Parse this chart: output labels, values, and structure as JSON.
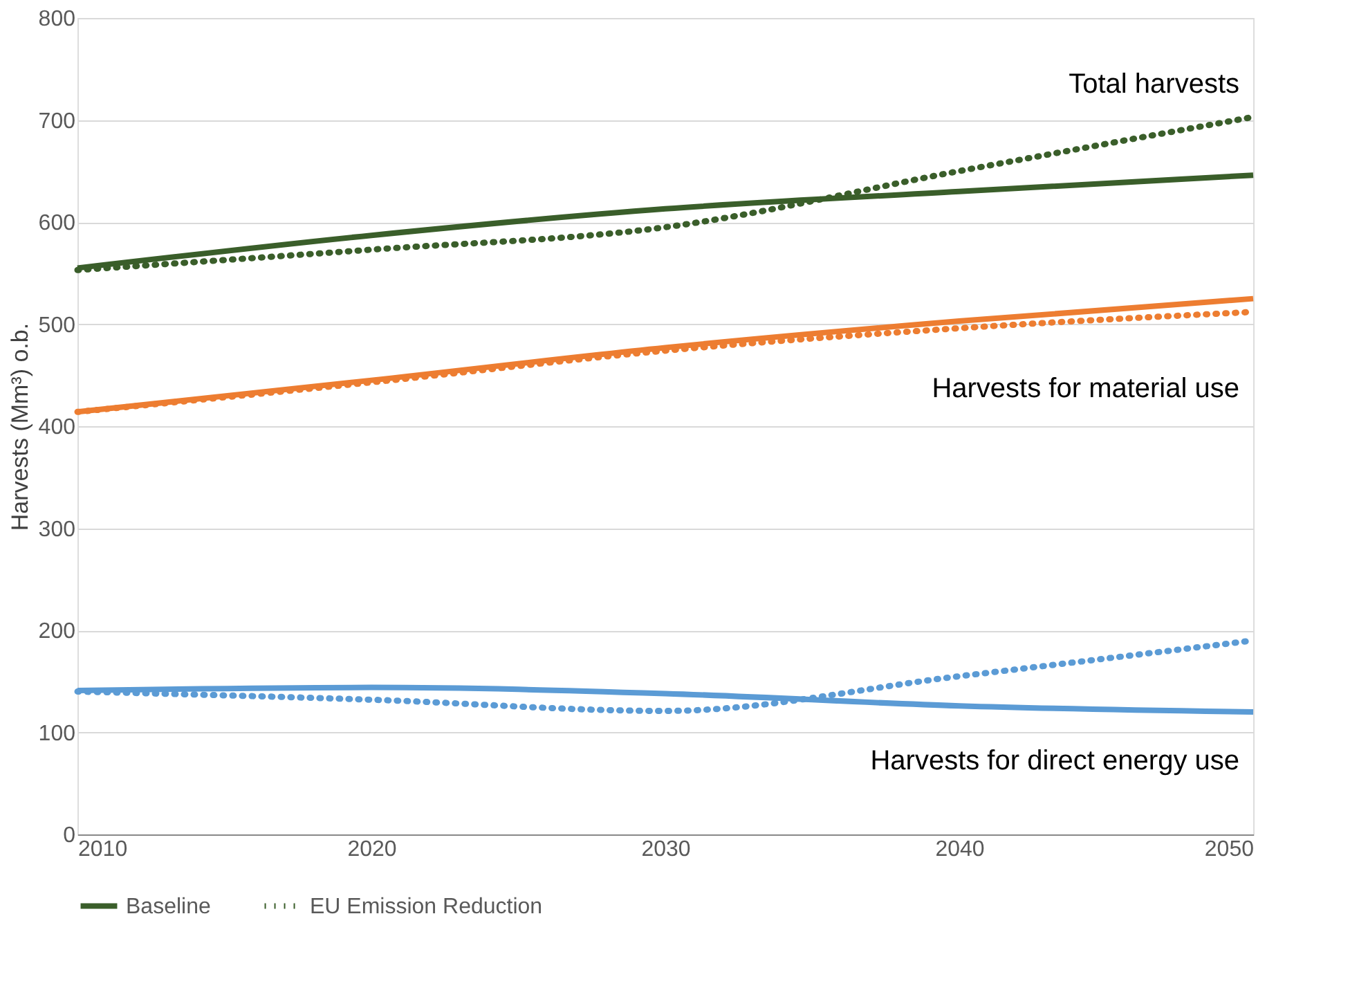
{
  "chart_data": {
    "type": "line",
    "ylabel": "Harvests (Mm³) o.b.",
    "x": [
      2010,
      2020,
      2030,
      2040,
      2050
    ],
    "series": [
      {
        "name": "Baseline",
        "color": "#3a5e2a",
        "line_style": "solid",
        "values": [
          555,
          587,
          613,
          630,
          646
        ]
      },
      {
        "name": "EU Emission Reduction",
        "color": "#3a5e2a",
        "line_style": "dotted",
        "values": [
          553,
          573,
          595,
          650,
          703
        ]
      },
      {
        "color": "#ed7d31",
        "line_style": "solid",
        "values": [
          414,
          445,
          477,
          503,
          525
        ]
      },
      {
        "color": "#ed7d31",
        "line_style": "dotted",
        "values": [
          414,
          443,
          474,
          496,
          512
        ]
      },
      {
        "color": "#5b9bd5",
        "line_style": "solid",
        "values": [
          141,
          144,
          138,
          126,
          120
        ]
      },
      {
        "color": "#5b9bd5",
        "line_style": "dotted",
        "values": [
          140,
          132,
          121,
          155,
          190
        ]
      }
    ],
    "annotations": [
      "Total harvests",
      "Harvests for material use",
      "Harvests for direct energy use"
    ],
    "xlim": [
      2010,
      2050
    ],
    "xticks": [
      2010,
      2020,
      2030,
      2040,
      2050
    ],
    "ylim": [
      0,
      800
    ],
    "yticks": [
      0,
      100,
      200,
      300,
      400,
      500,
      600,
      700,
      800
    ],
    "grid": "y",
    "legend": "bottom",
    "marker": "none"
  }
}
